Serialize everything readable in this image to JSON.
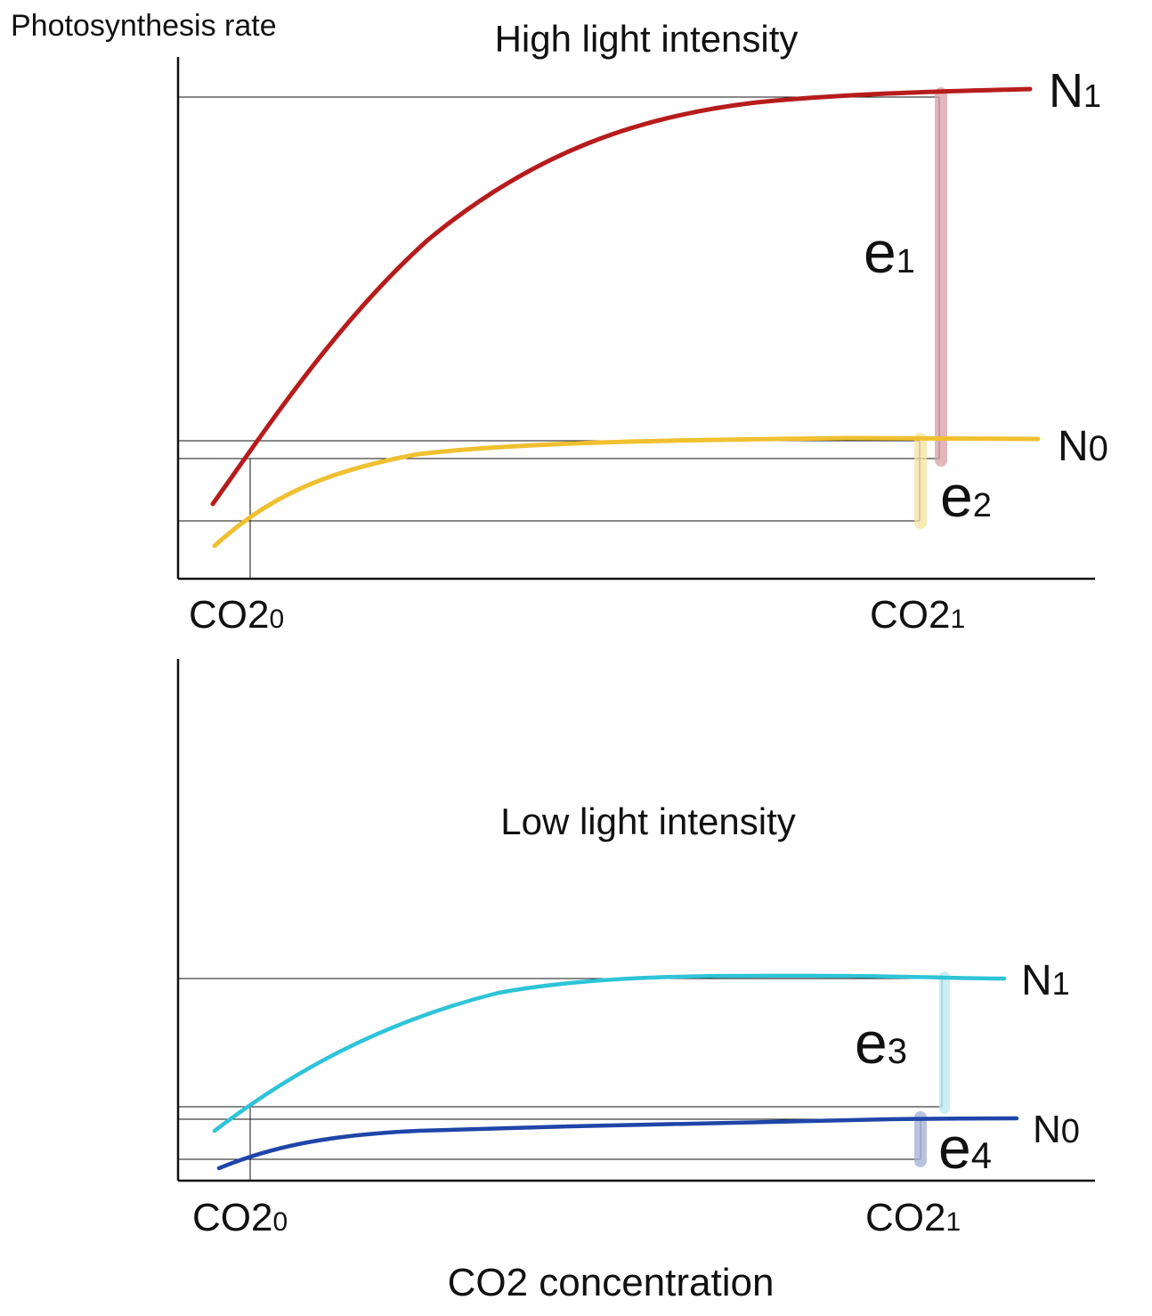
{
  "ylabel": "Photosynthesis rate",
  "xlabel": "CO2 concentration",
  "panels": [
    {
      "title": "High light intensity",
      "x_ticks": {
        "first": {
          "base": "CO2",
          "sub": "0"
        },
        "second": {
          "base": "CO2",
          "sub": "1"
        }
      },
      "curves": [
        {
          "label": {
            "base": "N",
            "sub": "1"
          },
          "color": "#b71c1c"
        },
        {
          "label": {
            "base": "N",
            "sub": "0"
          },
          "color": "#f0c030"
        }
      ],
      "effects": [
        {
          "label": {
            "base": "e",
            "sub": "1"
          },
          "color": "#d9a0a6"
        },
        {
          "label": {
            "base": "e",
            "sub": "2"
          },
          "color": "#f6e3a0"
        }
      ]
    },
    {
      "title": "Low light intensity",
      "x_ticks": {
        "first": {
          "base": "CO2",
          "sub": "0"
        },
        "second": {
          "base": "CO2",
          "sub": "1"
        }
      },
      "curves": [
        {
          "label": {
            "base": "N",
            "sub": "1"
          },
          "color": "#2ec4d8"
        },
        {
          "label": {
            "base": "N",
            "sub": "0"
          },
          "color": "#1f45a8"
        }
      ],
      "effects": [
        {
          "label": {
            "base": "e",
            "sub": "3"
          },
          "color": "#bfe9f2"
        },
        {
          "label": {
            "base": "e",
            "sub": "4"
          },
          "color": "#a8b4d8"
        }
      ]
    }
  ]
}
